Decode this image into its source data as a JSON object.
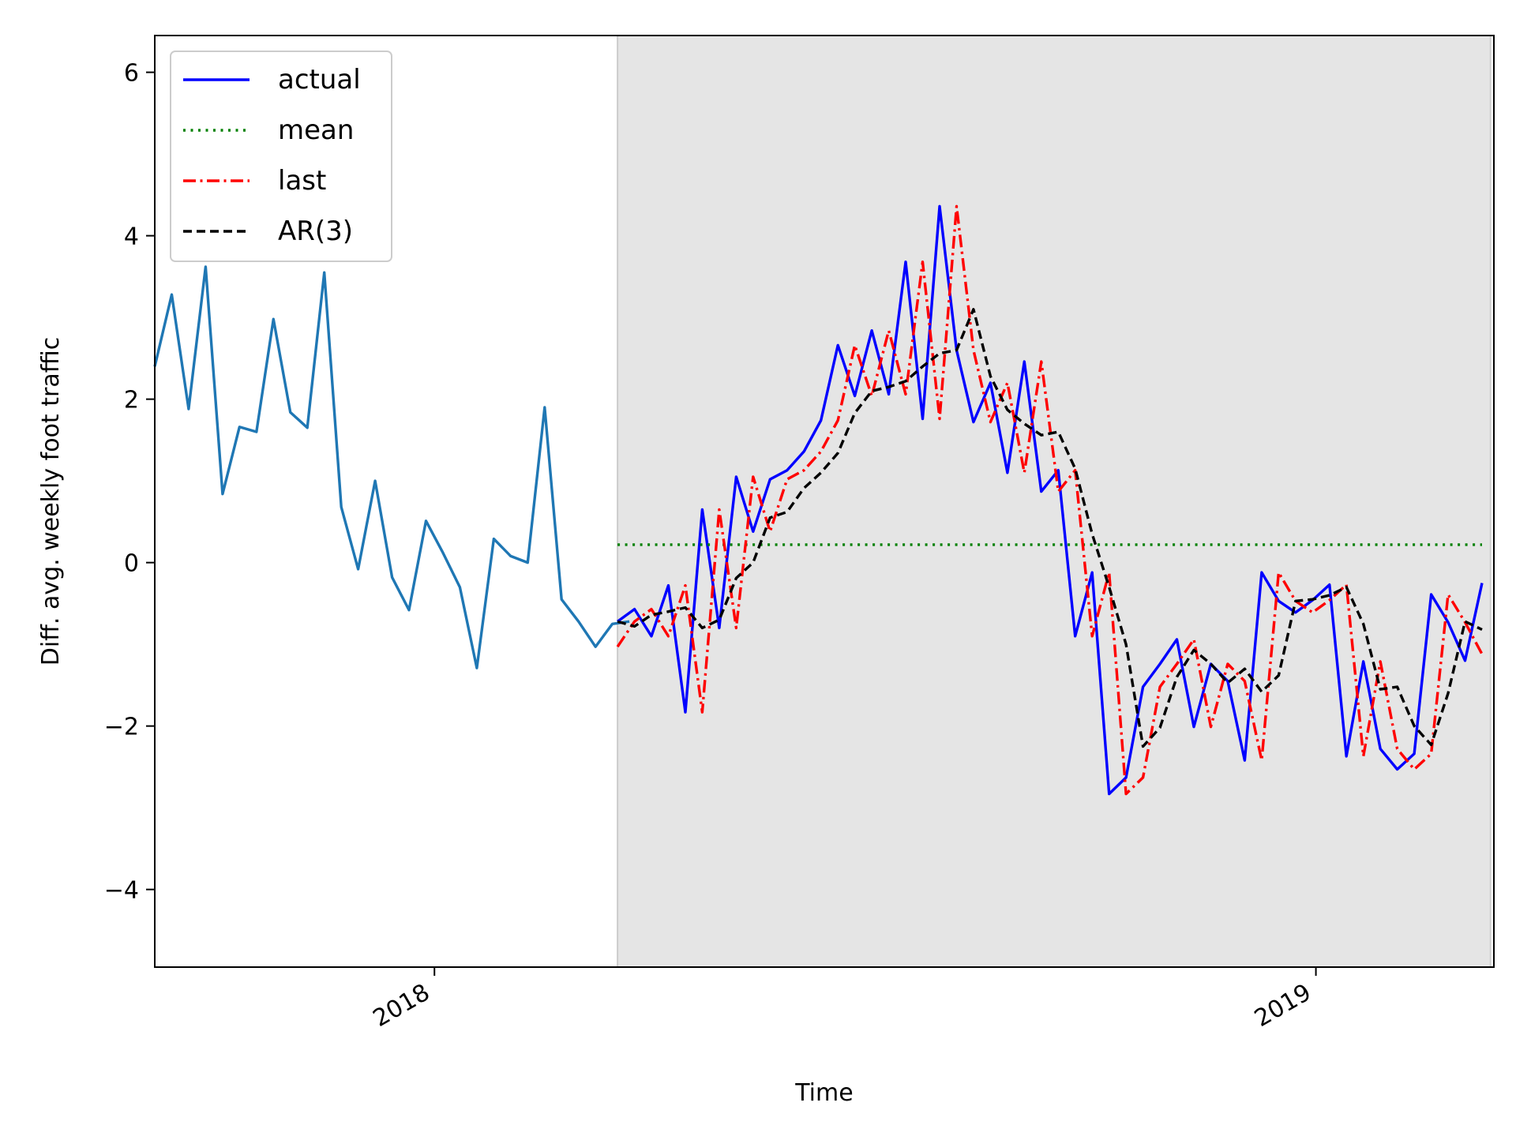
{
  "chart_data": {
    "type": "line",
    "title": "",
    "xlabel": "Time",
    "ylabel": "Diff. avg. weekly foot traffic",
    "x_ticks": [
      "2018",
      "2019"
    ],
    "y_ticks": [
      "6",
      "4",
      "2",
      "0",
      "−2",
      "−4"
    ],
    "ylim": [
      -4.95,
      6.45
    ],
    "xlim_week_index": [
      -16.5,
      62.5
    ],
    "x_tick_week_index": [
      0,
      52
    ],
    "test_region_week_index": [
      10.8,
      62.3
    ],
    "grid": false,
    "legend_position": "top-left",
    "colors": {
      "train": "#1f77b4",
      "actual": "#0000ff",
      "mean": "#008000",
      "last": "#ff0000",
      "ar": "#000000",
      "test_region": "#e5e5e5"
    },
    "series": [
      {
        "name": "",
        "role": "train",
        "x": [
          -16.5,
          -15.5,
          -14.5,
          -13.5,
          -12.5,
          -11.5,
          -10.5,
          -9.5,
          -8.5,
          -7.5,
          -6.5,
          -5.5,
          -4.5,
          -3.5,
          -2.5,
          -1.5,
          -0.5,
          0.5,
          1.5,
          2.5,
          3.5,
          4.5,
          5.5,
          6.5,
          7.5,
          8.5,
          9.5,
          10.5,
          11.5
        ],
        "y": [
          2.4,
          3.28,
          1.88,
          3.62,
          0.84,
          1.66,
          1.6,
          2.98,
          1.84,
          1.65,
          3.55,
          0.68,
          -0.08,
          1.0,
          -0.18,
          -0.58,
          0.51,
          0.12,
          -0.3,
          -1.29,
          0.29,
          0.08,
          0.0,
          1.9,
          -0.45,
          -0.72,
          -1.03,
          -0.75,
          -0.72
        ]
      },
      {
        "name": "actual",
        "role": "actual",
        "x": [
          10.8,
          11.8,
          12.8,
          13.8,
          14.8,
          15.8,
          16.8,
          17.8,
          18.8,
          19.8,
          20.8,
          21.8,
          22.8,
          23.8,
          24.8,
          25.8,
          26.8,
          27.8,
          28.8,
          29.8,
          30.8,
          31.8,
          32.8,
          33.8,
          34.8,
          35.8,
          36.8,
          37.8,
          38.8,
          39.8,
          40.8,
          41.8,
          42.8,
          43.8,
          44.8,
          45.8,
          46.8,
          47.8,
          48.8,
          49.8,
          50.8,
          51.8,
          52.8,
          53.8,
          54.8,
          55.8,
          56.8,
          57.8,
          58.8,
          59.8,
          60.8,
          61.8
        ],
        "y": [
          -0.72,
          -0.57,
          -0.9,
          -0.28,
          -1.83,
          0.65,
          -0.8,
          1.05,
          0.38,
          1.02,
          1.13,
          1.36,
          1.74,
          2.66,
          2.04,
          2.84,
          2.06,
          3.68,
          1.76,
          4.36,
          2.6,
          1.72,
          2.2,
          1.1,
          2.46,
          0.87,
          1.13,
          -0.9,
          -0.12,
          -2.83,
          -2.63,
          -1.52,
          -1.24,
          -0.94,
          -2.01,
          -1.24,
          -1.45,
          -2.42,
          -0.12,
          -0.47,
          -0.61,
          -0.46,
          -0.27,
          -2.37,
          -1.21,
          -2.28,
          -2.53,
          -2.34,
          -0.39,
          -0.73,
          -1.2,
          -0.25
        ]
      },
      {
        "name": "mean",
        "role": "mean",
        "x": [
          10.8,
          61.8
        ],
        "y": [
          0.22,
          0.22
        ]
      },
      {
        "name": "last",
        "role": "last",
        "x": [
          10.8,
          11.8,
          12.8,
          13.8,
          14.8,
          15.8,
          16.8,
          17.8,
          18.8,
          19.8,
          20.8,
          21.8,
          22.8,
          23.8,
          24.8,
          25.8,
          26.8,
          27.8,
          28.8,
          29.8,
          30.8,
          31.8,
          32.8,
          33.8,
          34.8,
          35.8,
          36.8,
          37.8,
          38.8,
          39.8,
          40.8,
          41.8,
          42.8,
          43.8,
          44.8,
          45.8,
          46.8,
          47.8,
          48.8,
          49.8,
          50.8,
          51.8,
          52.8,
          53.8,
          54.8,
          55.8,
          56.8,
          57.8,
          58.8,
          59.8,
          60.8,
          61.8
        ],
        "y": [
          -1.03,
          -0.72,
          -0.57,
          -0.9,
          -0.28,
          -1.83,
          0.65,
          -0.8,
          1.05,
          0.38,
          1.02,
          1.13,
          1.36,
          1.74,
          2.66,
          2.04,
          2.84,
          2.06,
          3.68,
          1.76,
          4.36,
          2.6,
          1.72,
          2.2,
          1.1,
          2.46,
          0.87,
          1.13,
          -0.9,
          -0.12,
          -2.83,
          -2.63,
          -1.52,
          -1.24,
          -0.94,
          -2.01,
          -1.24,
          -1.45,
          -2.42,
          -0.12,
          -0.47,
          -0.61,
          -0.46,
          -0.27,
          -2.37,
          -1.21,
          -2.28,
          -2.53,
          -2.34,
          -0.39,
          -0.73,
          -1.12
        ]
      },
      {
        "name": "AR(3)",
        "role": "ar",
        "x": [
          10.8,
          11.8,
          12.8,
          13.8,
          14.8,
          15.8,
          16.8,
          17.8,
          18.8,
          19.8,
          20.8,
          21.8,
          22.8,
          23.8,
          24.8,
          25.8,
          26.8,
          27.8,
          28.8,
          29.8,
          30.8,
          31.8,
          32.8,
          33.8,
          34.8,
          35.8,
          36.8,
          37.8,
          38.8,
          39.8,
          40.8,
          41.8,
          42.8,
          43.8,
          44.8,
          45.8,
          46.8,
          47.8,
          48.8,
          49.8,
          50.8,
          51.8,
          52.8,
          53.8,
          54.8,
          55.8,
          56.8,
          57.8,
          58.8,
          59.8,
          60.8,
          61.8
        ],
        "y": [
          -0.72,
          -0.78,
          -0.64,
          -0.6,
          -0.55,
          -0.8,
          -0.7,
          -0.19,
          0.0,
          0.55,
          0.62,
          0.91,
          1.1,
          1.34,
          1.83,
          2.1,
          2.15,
          2.22,
          2.4,
          2.56,
          2.6,
          3.1,
          2.28,
          1.87,
          1.7,
          1.56,
          1.6,
          1.15,
          0.35,
          -0.3,
          -1.0,
          -2.25,
          -2.02,
          -1.4,
          -1.07,
          -1.24,
          -1.47,
          -1.3,
          -1.58,
          -1.38,
          -0.47,
          -0.45,
          -0.4,
          -0.3,
          -0.75,
          -1.55,
          -1.52,
          -2.0,
          -2.23,
          -1.6,
          -0.72,
          -0.82
        ]
      }
    ]
  }
}
